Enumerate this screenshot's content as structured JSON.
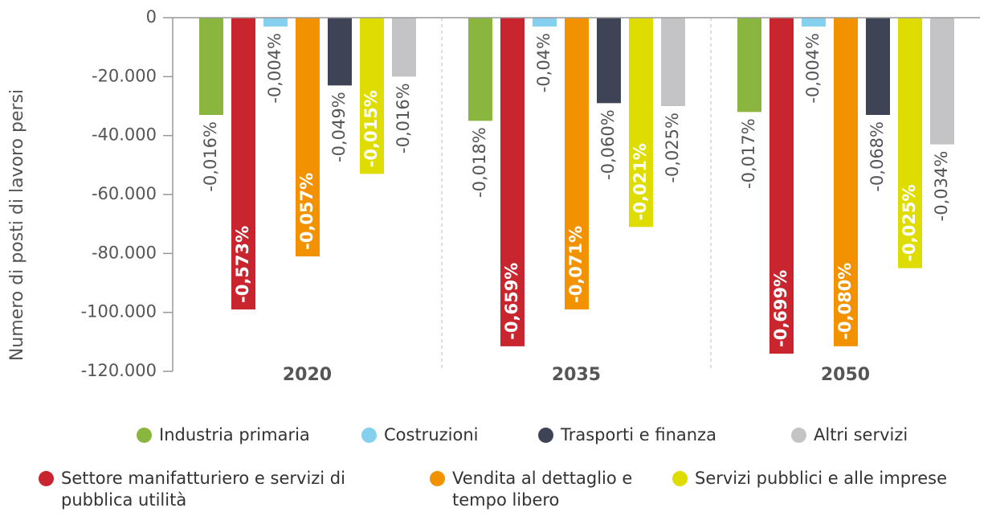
{
  "chart_data": {
    "type": "bar",
    "y_label": "Numero di posti di lavoro persi",
    "categories": [
      "2020",
      "2035",
      "2050"
    ],
    "ylim": [
      -120000,
      0
    ],
    "yticks": [
      0,
      {
        "value": -20000,
        "label": "-20.000"
      },
      {
        "value": -40000,
        "label": "-40.000"
      },
      {
        "value": -60000,
        "label": "-60.000"
      },
      {
        "value": -80000,
        "label": "-80.000"
      },
      {
        "value": -100000,
        "label": "-100.000"
      },
      {
        "value": -120000,
        "label": "-120.000"
      }
    ],
    "series": [
      {
        "name": "Industria primaria",
        "color": "#8ab63f",
        "values": [
          -33000,
          -35000,
          -32000
        ],
        "share_labels": [
          "-0,016%",
          "-0,018%",
          "-0,017%"
        ]
      },
      {
        "name": "Settore manifatturiero e servizi di pubblica utilità",
        "color": "#c8252f",
        "values": [
          -99000,
          -111500,
          -114000
        ],
        "share_labels": [
          "-0,573%",
          "-0,659%",
          "-0,699%"
        ]
      },
      {
        "name": "Costruzioni",
        "color": "#85d0ee",
        "values": [
          -3000,
          -3000,
          -3000
        ],
        "share_labels": [
          "-0,004%",
          "-0,04%",
          "-0,004%"
        ]
      },
      {
        "name": "Vendita al dettaglio e tempo libero",
        "color": "#f39200",
        "values": [
          -81000,
          -99000,
          -111500
        ],
        "share_labels": [
          "-0,057%",
          "-0,071%",
          "-0,080%"
        ]
      },
      {
        "name": "Trasporti e finanza",
        "color": "#3e4356",
        "values": [
          -23000,
          -29000,
          -33000
        ],
        "share_labels": [
          "-0,049%",
          "-0,060%",
          "-0,068%"
        ]
      },
      {
        "name": "Servizi pubblici e alle imprese",
        "color": "#dedc00",
        "values": [
          -53000,
          -71000,
          -85000
        ],
        "share_labels": [
          "-0,015%",
          "-0,021%",
          "-0,025%"
        ]
      },
      {
        "name": "Altri servizi",
        "color": "#c4c4c6",
        "values": [
          -20000,
          -30000,
          -43000
        ],
        "share_labels": [
          "-0,016%",
          "-0,025%",
          "-0,034%"
        ]
      }
    ]
  }
}
